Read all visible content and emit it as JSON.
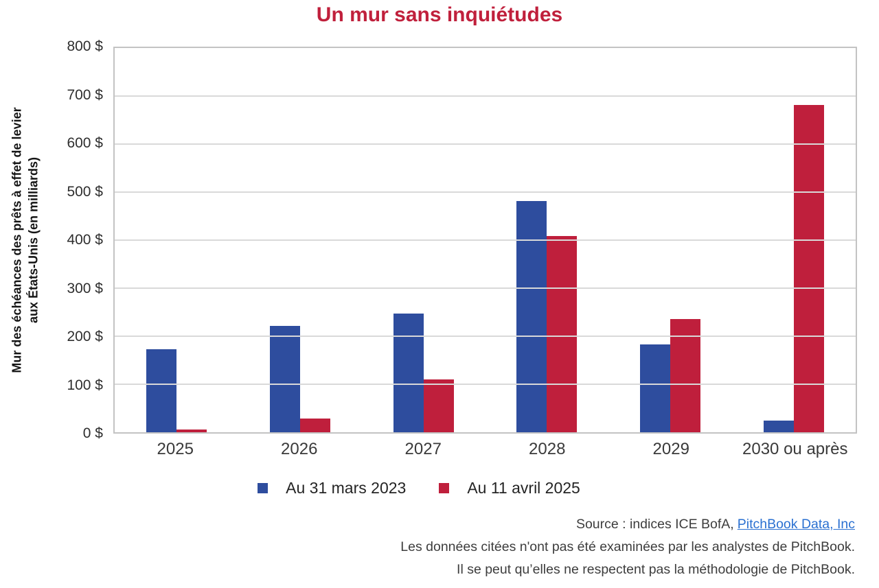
{
  "title": "Un mur sans inquiétudes",
  "colors": {
    "title": "#c0203c",
    "link": "#2a70d1"
  },
  "chart_data": {
    "type": "bar",
    "title": "Un mur sans inquiétudes",
    "categories": [
      "2025",
      "2026",
      "2027",
      "2028",
      "2029",
      "2030 ou après"
    ],
    "series": [
      {
        "name": "Au 31 mars 2023",
        "color": "#2e4d9e",
        "values": [
          173,
          222,
          247,
          481,
          183,
          24
        ]
      },
      {
        "name": "Au 11 avril 2025",
        "color": "#bf1f3c",
        "values": [
          6,
          29,
          110,
          408,
          236,
          681
        ]
      }
    ],
    "ylabel_line1": "Mur des échéances des prêts à effet de levier",
    "ylabel_line2": "aux États-Unis (en milliards)",
    "ylim": [
      0,
      800
    ],
    "y_tick_step": 100,
    "y_tick_labels": [
      "800 $",
      "700 $",
      "600 $",
      "500 $",
      "400 $",
      "300 $",
      "200 $",
      "100 $",
      "0 $"
    ],
    "grid": "horizontal",
    "legend_position": "bottom"
  },
  "footer": {
    "source_prefix": "Source : indices ICE BofA,",
    "source_link": "PitchBook Data, Inc",
    "disclaimer_line1": "Les données citées n'ont pas été examinées par les analystes de PitchBook.",
    "disclaimer_line2": "Il se peut qu’elles ne respectent pas la méthodologie de PitchBook."
  }
}
